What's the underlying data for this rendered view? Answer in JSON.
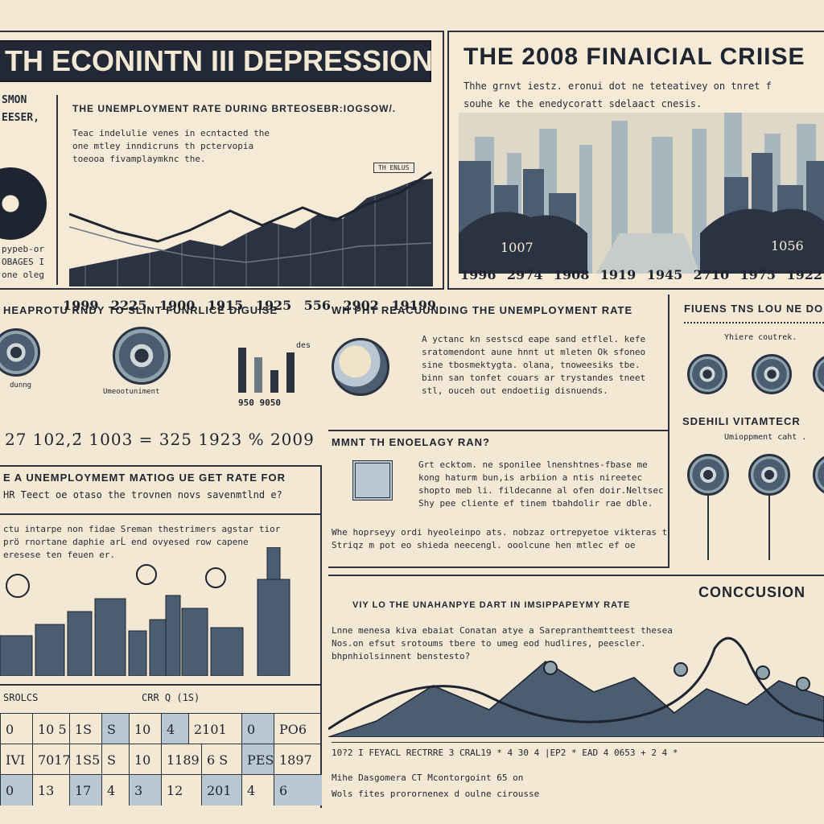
{
  "header_left": {
    "title": "TH ECONINTN III DEPRESSION",
    "side_a": "SMON",
    "side_b": "EESER,",
    "side_c": "pypeb-or",
    "side_d": "OBAGES I",
    "side_e": "one oleg"
  },
  "chart_left": {
    "title": "THE UNEMPLOYMENT RATE DURING BRTEOSEBR:IOGSOW/.",
    "desc1": "Teac indelulie venes in ecntacted the",
    "desc2": "one mtley inndicruns th pctervopia",
    "desc3": "toeooa fivamplaymknc the.",
    "tag": "TH ENLUS",
    "ticks": [
      "1999",
      "2225",
      "1900",
      "1915",
      "1925",
      "556",
      "2902",
      "19199"
    ]
  },
  "crisis": {
    "title": "THE 2008 FINAICIAL CRIISE",
    "sub1": "Thhe grnvt iestz.  eronui dot ne teteativey on tnret f",
    "sub2": "souhe ke the enedycoratt sdelaact cnesis.",
    "label_a": "1007",
    "label_b": "1056",
    "ticks": [
      "1996",
      "2974",
      "1908",
      "1919",
      "1945",
      "2710",
      "1975",
      "1922"
    ]
  },
  "row2_left": {
    "title": "HEAPROTU RNDY TO SLINT FUNRLICE DIGUISE",
    "cap1": "dunng",
    "cap2": "Umeootuniment",
    "bar_label": "des",
    "bar_ticks": "950  9050",
    "numbers": "27  102,2̄  1003  =  325  1923 %  2009"
  },
  "row2_mid": {
    "title": "WH PHT REACUUNDING THE UNEMPLOYMENT RATE",
    "p1": "A yctanc kn sestscd eape sand etflel. kefe",
    "p2": "sratomendont aune hnnt ut mleten Ok sfoneo",
    "p3": "sine tbosmektygta. olana, tnoweesiks tbe.",
    "p4": "binn san tonfet couars ar trystandes tneet",
    "p5": "stl, ouceh out endoetiig disnuends."
  },
  "row2_right": {
    "title": "FIUENS TNS LOU NE DO",
    "cap": "Yhiere coutrek.",
    "sub": "SDEHILI VITAMTECR",
    "cap2": "Umioppment caht ."
  },
  "mid_left": {
    "title": "E A UNEMPLOYMEMT MATIOG UE GET RATE FOR",
    "sub": "HR Teect oe otaso the trovnen novs savenmtlnd e?",
    "p1": "ctu intarpe non fidae Sreman thestrimers agstar tior",
    "p2": "prö rnortane daphie arĹ end ovyesed row capene",
    "p3": "eresese ten feuen er."
  },
  "mid_center": {
    "title": "MMNT TH ENOELAGY RAN?",
    "p1": "Grt ecktom. ne sponilee lnenshtnes-fbase me",
    "p2": "kong haturm bun,is arbiion a ntis nireetec",
    "p3": "shopto meb li. fildecanne al ofen doir.Neltsec",
    "p4": "Shy pee cliente ef tinem tbahdolir rae dble.",
    "p5": "Whe hoprseyy ordi hyeoleinpo ats. nobzaz ortrepyetoe vikteras t",
    "p6": "Striqz m pot eo shieda neecengl. ooolcune hen mtlec  ef oe"
  },
  "conclusion": {
    "title": "CONCCUSION",
    "sub": "VIY LO THE UNAHANPYE DART IN IMSIPPAPEYMY RATE",
    "p1": "Lnne menesa kiva ebaiat Conatan atye a  Sarepranthemtteest thesea",
    "p2": "Nos.on efsut srotoums tbere to umeg eod hudlires, peescler.",
    "p3": "bhpnhiolsinnent benstesto?",
    "row1": "10?2 I FEYACL RECTRRE 3 CRAL19   *  4 30 4  |EP2  *  EAD 4 0653  +  2  4  *",
    "row2": "Mihe Dasgomera CT Mcontorgoint 65 on",
    "row3": "Wols fites prorornenex d oulne cirousse"
  },
  "table": {
    "head_a": "SROLCS",
    "head_b": "CRR Q (1S)",
    "row1": [
      "0",
      "10 5",
      "1S",
      "S",
      "10",
      "4",
      "2101",
      "0",
      "PO6"
    ],
    "row2": [
      "IVI",
      "7017",
      "1S5",
      "S",
      "10",
      "1189",
      "6 S",
      "PES",
      "1897"
    ],
    "row3": [
      "0",
      "13",
      "17",
      "4",
      "3",
      "12",
      "201",
      "4",
      "6"
    ]
  },
  "colors": {
    "ink": "#2b3342",
    "paper": "#f5ead6",
    "steel": "#4b5d70",
    "accent": "#b9c7d2"
  }
}
